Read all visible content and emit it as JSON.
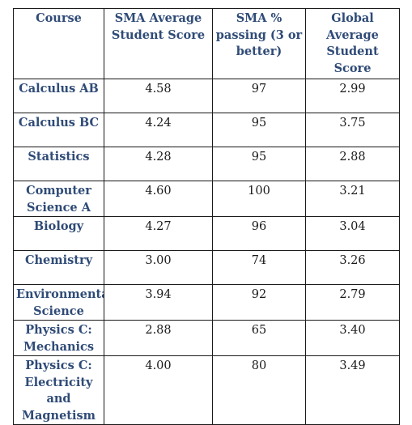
{
  "table": {
    "headers": [
      "Course",
      "SMA Average Student Score",
      "SMA % passing (3 or better)",
      "Global Average Student Score"
    ],
    "rows": [
      {
        "course": "Calculus AB",
        "sma_avg": "4.58",
        "sma_pass": "97",
        "global_avg": "2.99"
      },
      {
        "course": "Calculus BC",
        "sma_avg": "4.24",
        "sma_pass": "95",
        "global_avg": "3.75"
      },
      {
        "course": "Statistics",
        "sma_avg": "4.28",
        "sma_pass": "95",
        "global_avg": "2.88"
      },
      {
        "course": "Computer Science A",
        "sma_avg": "4.60",
        "sma_pass": "100",
        "global_avg": "3.21"
      },
      {
        "course": "Biology",
        "sma_avg": "4.27",
        "sma_pass": "96",
        "global_avg": "3.04"
      },
      {
        "course": "Chemistry",
        "sma_avg": "3.00",
        "sma_pass": "74",
        "global_avg": "3.26"
      },
      {
        "course": "Environmental Science",
        "sma_avg": "3.94",
        "sma_pass": "92",
        "global_avg": "2.79"
      },
      {
        "course": "Physics C: Mechanics",
        "sma_avg": "2.88",
        "sma_pass": "65",
        "global_avg": "3.40"
      },
      {
        "course": "Physics C: Electricity and Magnetism",
        "sma_avg": "4.00",
        "sma_pass": "80",
        "global_avg": "3.49"
      }
    ]
  },
  "colors": {
    "header_text": "#2f4b77",
    "course_text": "#2f4b77",
    "value_text": "#1a1a1a",
    "border": "#1a1a1a"
  }
}
